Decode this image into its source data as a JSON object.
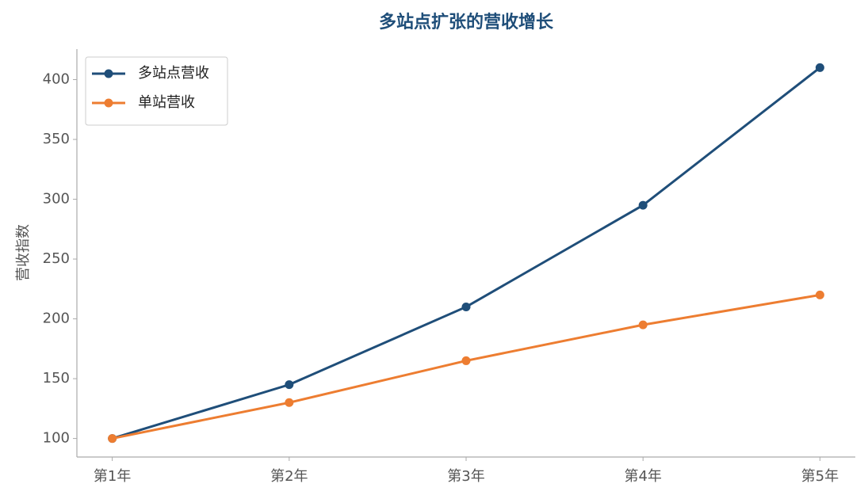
{
  "chart_data": {
    "type": "line",
    "title": "多站点扩张的营收增长",
    "y_label": "营收指数",
    "categories": [
      "第1年",
      "第2年",
      "第3年",
      "第4年",
      "第5年"
    ],
    "series": [
      {
        "name": "多站点营收",
        "color": "#1f4e79",
        "values": [
          100,
          145,
          210,
          295,
          410
        ]
      },
      {
        "name": "单站营收",
        "color": "#ed7d31",
        "values": [
          100,
          130,
          165,
          195,
          220
        ]
      }
    ],
    "ylim": [
      84.5,
      425.5
    ],
    "yticks": [
      100,
      150,
      200,
      250,
      300,
      350,
      400
    ],
    "grid": false,
    "legend": "upper-left"
  }
}
